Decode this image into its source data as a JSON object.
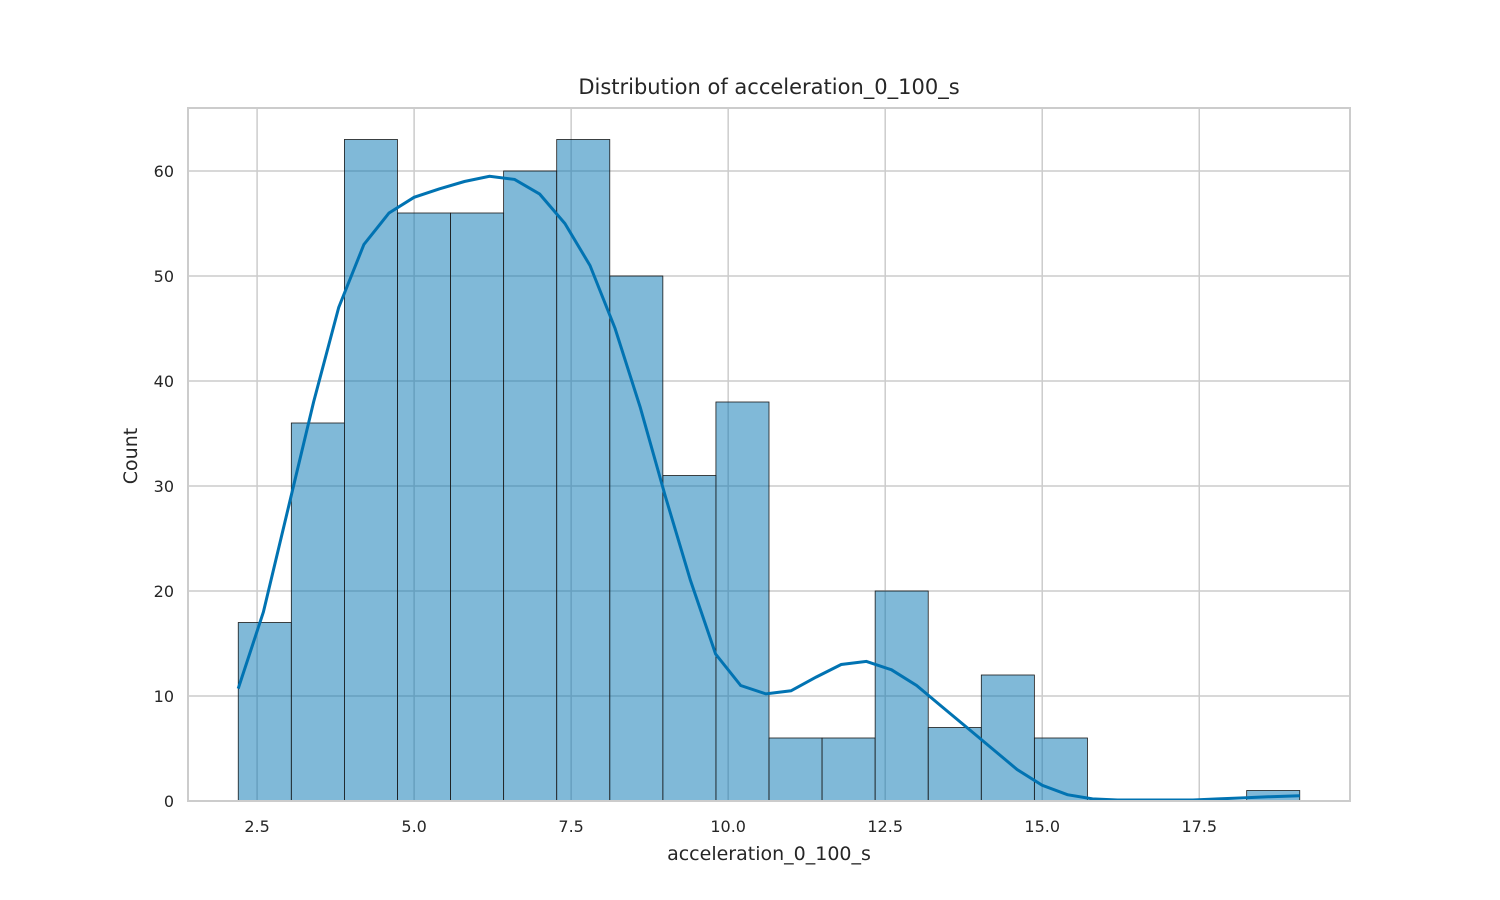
{
  "chart_data": {
    "type": "bar",
    "title": "Distribution of acceleration_0_100_s",
    "xlabel": "acceleration_0_100_s",
    "ylabel": "Count",
    "xlim": [
      1.4,
      19.9
    ],
    "ylim": [
      0,
      66
    ],
    "xticks": [
      {
        "value": 2.5,
        "label": "2.5"
      },
      {
        "value": 5.0,
        "label": "5.0"
      },
      {
        "value": 7.5,
        "label": "7.5"
      },
      {
        "value": 10.0,
        "label": "10.0"
      },
      {
        "value": 12.5,
        "label": "12.5"
      },
      {
        "value": 15.0,
        "label": "15.0"
      },
      {
        "value": 17.5,
        "label": "17.5"
      }
    ],
    "yticks": [
      {
        "value": 0,
        "label": "0"
      },
      {
        "value": 10,
        "label": "10"
      },
      {
        "value": 20,
        "label": "20"
      },
      {
        "value": 30,
        "label": "30"
      },
      {
        "value": 40,
        "label": "40"
      },
      {
        "value": 50,
        "label": "50"
      },
      {
        "value": 60,
        "label": "60"
      }
    ],
    "bins": {
      "start": 2.2,
      "width": 0.845,
      "counts": [
        17,
        36,
        63,
        56,
        56,
        60,
        63,
        50,
        31,
        38,
        6,
        6,
        20,
        7,
        12,
        6,
        0,
        0,
        0,
        1
      ]
    },
    "kde": {
      "x": [
        2.2,
        2.6,
        3.0,
        3.4,
        3.8,
        4.2,
        4.6,
        5.0,
        5.4,
        5.8,
        6.2,
        6.6,
        7.0,
        7.4,
        7.8,
        8.2,
        8.6,
        9.0,
        9.4,
        9.8,
        10.2,
        10.6,
        11.0,
        11.4,
        11.8,
        12.2,
        12.6,
        13.0,
        13.4,
        13.8,
        14.2,
        14.6,
        15.0,
        15.4,
        15.8,
        16.2,
        16.6,
        17.0,
        17.4,
        17.8,
        18.2,
        18.6,
        19.1
      ],
      "y": [
        10.7,
        18,
        28,
        38,
        47,
        53,
        56,
        57.5,
        58.3,
        59,
        59.5,
        59.2,
        57.8,
        55,
        51,
        45,
        37.5,
        29,
        21,
        14,
        11,
        10.2,
        10.5,
        11.8,
        13,
        13.3,
        12.5,
        11,
        9,
        7,
        5,
        3,
        1.5,
        0.6,
        0.2,
        0.1,
        0.1,
        0.1,
        0.1,
        0.2,
        0.3,
        0.4,
        0.5
      ]
    },
    "grid": true,
    "colors": {
      "bar": "#0173b2",
      "line": "#0173b2",
      "grid": "#cccccc"
    }
  }
}
